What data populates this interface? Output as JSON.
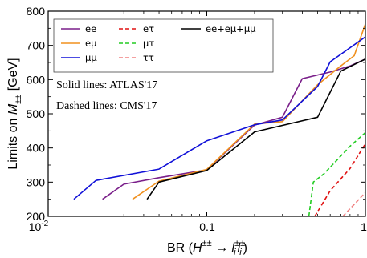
{
  "chart_data": {
    "type": "line",
    "xlabel_main": "BR (",
    "xlabel_H": "H",
    "xlabel_sup": "±±",
    "xlabel_arrow": " → ",
    "xlabel_l1": "l",
    "xlabel_l1_sup": "±",
    "xlabel_l1_sub": "i",
    "xlabel_l2": "l",
    "xlabel_l2_sup": "±",
    "xlabel_l2_sub": "i",
    "xlabel_close": ")",
    "ylabel_prefix": "Limits on ",
    "ylabel_M": "M",
    "ylabel_sub": "±±",
    "ylabel_unit": " [GeV]",
    "x_scale": "log",
    "xlim": [
      0.01,
      1
    ],
    "ylim": [
      200,
      800
    ],
    "x_ticks": [
      {
        "value": 0.01,
        "base": "10",
        "exp": "-2"
      },
      {
        "value": 0.1,
        "label": "0.1"
      },
      {
        "value": 1,
        "label": "1"
      }
    ],
    "y_ticks": [
      200,
      300,
      400,
      500,
      600,
      700,
      800
    ],
    "annotations": [
      "Solid lines: ATLAS'17",
      "Dashed lines: CMS'17"
    ],
    "legend_position": "top-left",
    "series": [
      {
        "name": "ee",
        "color": "#7a1f8a",
        "dash": "solid",
        "x": [
          0.022,
          0.03,
          0.05,
          0.1,
          0.2,
          0.3,
          0.4,
          0.6,
          0.8,
          1.0
        ],
        "y": [
          250,
          294,
          313,
          336,
          467,
          490,
          603,
          622,
          640,
          660
        ]
      },
      {
        "name": "eμ",
        "color": "#f0901e",
        "dash": "solid",
        "x": [
          0.034,
          0.05,
          0.1,
          0.2,
          0.3,
          0.5,
          0.7,
          0.85,
          1.0
        ],
        "y": [
          250,
          303,
          337,
          470,
          477,
          585,
          640,
          670,
          763
        ]
      },
      {
        "name": "μμ",
        "color": "#1010d8",
        "dash": "solid",
        "x": [
          0.0145,
          0.02,
          0.05,
          0.1,
          0.2,
          0.3,
          0.5,
          0.6,
          1.0
        ],
        "y": [
          250,
          305,
          338,
          421,
          468,
          482,
          580,
          652,
          725
        ]
      },
      {
        "name": "eτ",
        "color": "#e01010",
        "dash": "dashed",
        "x": [
          0.48,
          0.6,
          0.8,
          1.0
        ],
        "y": [
          200,
          275,
          340,
          412
        ]
      },
      {
        "name": "μτ",
        "color": "#22cc22",
        "dash": "dashed",
        "x": [
          0.44,
          0.47,
          0.55,
          0.8,
          1.0
        ],
        "y": [
          200,
          300,
          325,
          405,
          445
        ]
      },
      {
        "name": "ττ",
        "color": "#f08080",
        "dash": "dashed",
        "x": [
          0.72,
          0.85,
          1.0
        ],
        "y": [
          200,
          235,
          270
        ]
      },
      {
        "name": "ee+eμ+μμ",
        "color": "#000000",
        "dash": "solid",
        "x": [
          0.042,
          0.05,
          0.1,
          0.2,
          0.5,
          0.7,
          1.0
        ],
        "y": [
          250,
          300,
          334,
          447,
          490,
          625,
          660
        ]
      }
    ]
  }
}
